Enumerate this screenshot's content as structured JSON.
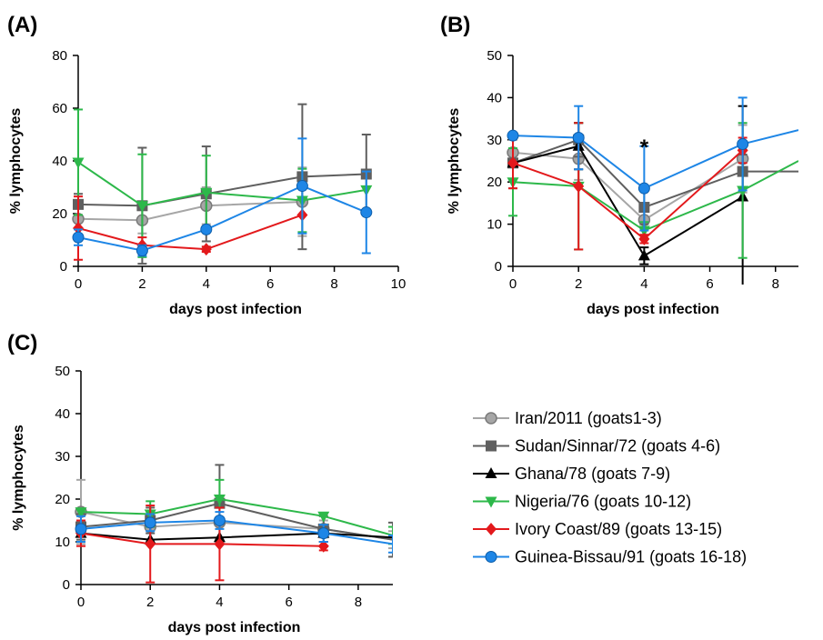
{
  "series_styles": [
    {
      "name": "Iran/2011 (goats1-3)",
      "color": "#a6a6a6",
      "marker": "circle-ring"
    },
    {
      "name": "Sudan/Sinnar/72 (goats 4-6)",
      "color": "#5f5f5f",
      "marker": "square"
    },
    {
      "name": "Ghana/78 (goats 7-9)",
      "color": "#000000",
      "marker": "triangle-up"
    },
    {
      "name": "Nigeria/76 (goats 10-12)",
      "color": "#2db84a",
      "marker": "triangle-down"
    },
    {
      "name": "Ivory Coast/89 (goats 13-15)",
      "color": "#e3191c",
      "marker": "diamond"
    },
    {
      "name": "Guinea-Bissau/91 (goats 16-18)",
      "color": "#1e86e6",
      "marker": "circle"
    }
  ],
  "chart_data": [
    {
      "panel": "(A)",
      "type": "line",
      "xlabel": "days post infection",
      "ylabel": "% lymphocytes",
      "xlim": [
        0,
        10
      ],
      "ylim": [
        0,
        80
      ],
      "xticks": [
        0,
        2,
        4,
        6,
        8,
        10
      ],
      "yticks": [
        0,
        20,
        40,
        60,
        80
      ],
      "grid": false,
      "series": [
        {
          "name": "Iran/2011 (goats1-3)",
          "x": [
            0,
            2,
            4,
            7
          ],
          "y": [
            18,
            17.5,
            23,
            24.5
          ],
          "err": [
            6,
            5,
            7,
            13
          ]
        },
        {
          "name": "Sudan/Sinnar/72 (goats 4-6)",
          "x": [
            0,
            2,
            4,
            7,
            9
          ],
          "y": [
            23.5,
            23,
            27.5,
            34,
            35
          ],
          "err": [
            4,
            22,
            18,
            27.5,
            15
          ]
        },
        {
          "name": "Nigeria/76 (goats 10-12)",
          "x": [
            0,
            2,
            4,
            7,
            9
          ],
          "y": [
            39.5,
            23,
            28,
            25,
            29
          ],
          "err": [
            20,
            19.5,
            14,
            12,
            0
          ]
        },
        {
          "name": "Ivory Coast/89 (goats 13-15)",
          "x": [
            0,
            2,
            4,
            7
          ],
          "y": [
            14.5,
            8,
            6.5,
            19.5
          ],
          "err": [
            12,
            3,
            1,
            0
          ]
        },
        {
          "name": "Guinea-Bissau/91 (goats 16-18)",
          "x": [
            0,
            2,
            4,
            7,
            9
          ],
          "y": [
            11,
            6,
            14,
            30.5,
            20.5
          ],
          "err": [
            3,
            2,
            0,
            18,
            15.5
          ]
        }
      ]
    },
    {
      "panel": "(B)",
      "type": "line",
      "xlabel": "days post infection",
      "ylabel": "% lymphocytes",
      "xlim": [
        0,
        8.7
      ],
      "ylim": [
        0,
        50
      ],
      "xticks": [
        0,
        2,
        4,
        6,
        8
      ],
      "yticks": [
        0,
        10,
        20,
        30,
        40,
        50
      ],
      "grid": false,
      "annotations": [
        {
          "x": 4,
          "y": 30,
          "text": "*"
        }
      ],
      "series": [
        {
          "name": "Iran/2011 (goats1-3)",
          "x": [
            0,
            2,
            4,
            7
          ],
          "y": [
            27,
            25.5,
            11,
            25.5
          ],
          "err": [
            3,
            5,
            2,
            8
          ]
        },
        {
          "name": "Sudan/Sinnar/72 (goats 4-6)",
          "x": [
            0,
            2,
            4,
            7,
            8.7
          ],
          "y": [
            24.5,
            30,
            14,
            22.5,
            22.5
          ],
          "err": [
            6,
            4,
            4,
            4,
            0
          ]
        },
        {
          "name": "Ghana/78 (goats 7-9)",
          "x": [
            0,
            2,
            4,
            7
          ],
          "y": [
            24.5,
            28.5,
            2.5,
            16.5
          ],
          "err": [
            0,
            5.5,
            2,
            21.5
          ]
        },
        {
          "name": "Nigeria/76 (goats 10-12)",
          "x": [
            0,
            2,
            4,
            7,
            8.7
          ],
          "y": [
            20,
            19,
            8.5,
            18,
            25
          ],
          "err": [
            8,
            15,
            2,
            16,
            0
          ]
        },
        {
          "name": "Ivory Coast/89 (goats 13-15)",
          "x": [
            0,
            2,
            4,
            7
          ],
          "y": [
            24.5,
            19,
            6.5,
            27.5
          ],
          "err": [
            6,
            15,
            1,
            3
          ]
        },
        {
          "name": "Guinea-Bissau/91 (goats 16-18)",
          "x": [
            0,
            2,
            4,
            7,
            8.7
          ],
          "y": [
            31,
            30.5,
            18.5,
            29,
            32.3
          ],
          "err": [
            0,
            7.5,
            10,
            11,
            0
          ]
        }
      ]
    },
    {
      "panel": "(C)",
      "type": "line",
      "xlabel": "days post infection",
      "ylabel": "% lymphocytes",
      "xlim": [
        0,
        9
      ],
      "ylim": [
        0,
        50
      ],
      "xticks": [
        0,
        2,
        4,
        6,
        8
      ],
      "yticks": [
        0,
        10,
        20,
        30,
        40,
        50
      ],
      "grid": false,
      "series": [
        {
          "name": "Iran/2011 (goats1-3)",
          "x": [
            0,
            2,
            4,
            7,
            9
          ],
          "y": [
            17,
            13.5,
            14.5,
            13,
            10.5
          ],
          "err": [
            7.5,
            3,
            4,
            2,
            2
          ]
        },
        {
          "name": "Sudan/Sinnar/72 (goats 4-6)",
          "x": [
            0,
            2,
            4,
            7,
            9
          ],
          "y": [
            13.5,
            15,
            19,
            13,
            10.5
          ],
          "err": [
            3,
            3,
            9,
            3,
            4
          ]
        },
        {
          "name": "Ghana/78 (goats 7-9)",
          "x": [
            0,
            2,
            4,
            7,
            9
          ],
          "y": [
            12,
            10.5,
            11,
            12,
            11
          ],
          "err": [
            0,
            0,
            0,
            0,
            0
          ]
        },
        {
          "name": "Nigeria/76 (goats 10-12)",
          "x": [
            0,
            2,
            4,
            7,
            9
          ],
          "y": [
            17,
            16.5,
            20,
            16,
            11.5
          ],
          "err": [
            0,
            3,
            4.5,
            0,
            2
          ]
        },
        {
          "name": "Ivory Coast/89 (goats 13-15)",
          "x": [
            0,
            2,
            4,
            7
          ],
          "y": [
            12,
            9.5,
            9.5,
            9
          ],
          "err": [
            3,
            9,
            8.5,
            1
          ]
        },
        {
          "name": "Guinea-Bissau/91 (goats 16-18)",
          "x": [
            0,
            2,
            4,
            7,
            9
          ],
          "y": [
            13,
            14.5,
            15,
            12,
            9.5
          ],
          "err": [
            3,
            2,
            2,
            2,
            2
          ]
        }
      ]
    }
  ]
}
